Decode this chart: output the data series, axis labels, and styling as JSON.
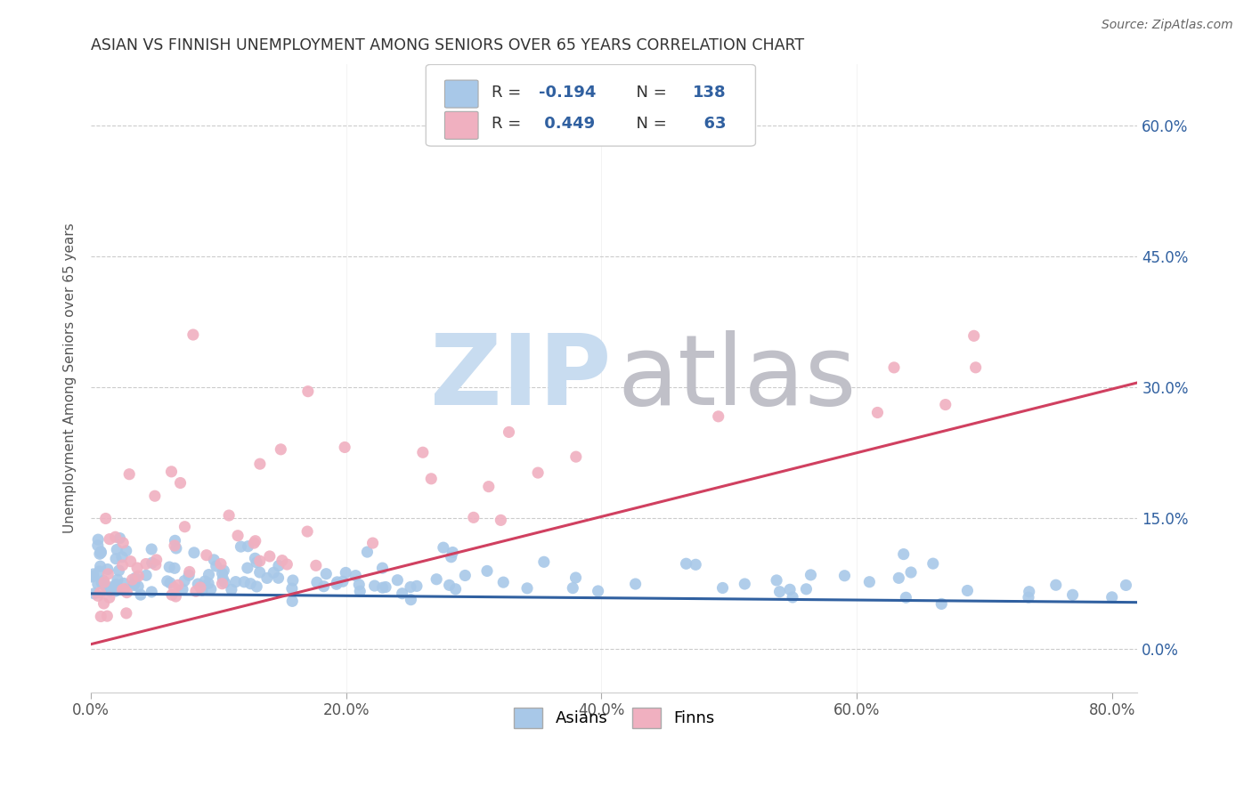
{
  "title": "ASIAN VS FINNISH UNEMPLOYMENT AMONG SENIORS OVER 65 YEARS CORRELATION CHART",
  "source": "Source: ZipAtlas.com",
  "ylabel": "Unemployment Among Seniors over 65 years",
  "ytick_vals": [
    0.0,
    0.15,
    0.3,
    0.45,
    0.6
  ],
  "ytick_labels": [
    "0.0%",
    "15.0%",
    "30.0%",
    "45.0%",
    "60.0%"
  ],
  "xtick_vals": [
    0.0,
    0.2,
    0.4,
    0.6,
    0.8
  ],
  "xtick_labels": [
    "0.0%",
    "20.0%",
    "40.0%",
    "60.0%",
    "80.0%"
  ],
  "xlim": [
    0.0,
    0.82
  ],
  "ylim": [
    -0.05,
    0.67
  ],
  "asian_color": "#A8C8E8",
  "asian_line_color": "#3060A0",
  "finn_color": "#F0B0C0",
  "finn_line_color": "#D04060",
  "legend_text_color": "#3060A0",
  "background_color": "#FFFFFF",
  "grid_color": "#CCCCCC",
  "title_color": "#333333",
  "axis_label_color": "#555555",
  "right_tick_color": "#3060A0",
  "watermark_ZIP_color": "#C8DCF0",
  "watermark_atlas_color": "#C0C0C8",
  "asian_R": -0.194,
  "asian_N": 138,
  "finn_R": 0.449,
  "finn_N": 63,
  "asian_line_x0": 0.0,
  "asian_line_y0": 0.063,
  "asian_line_x1": 0.82,
  "asian_line_y1": 0.053,
  "finn_line_x0": 0.0,
  "finn_line_y0": 0.005,
  "finn_line_x1": 0.82,
  "finn_line_y1": 0.305
}
